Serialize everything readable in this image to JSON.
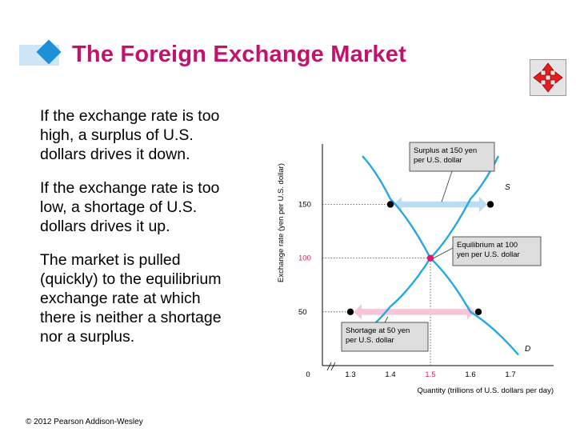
{
  "slide": {
    "title": "The Foreign Exchange Market",
    "bullets": [
      "If the exchange rate is too\nhigh, a surplus of U.S.\ndollars drives it down.",
      "If the exchange rate is too\nlow, a shortage of U.S.\ndollars drives it up.",
      "The market is pulled\n(quickly) to the equilibrium\nexchange rate at which\nthere is neither a shortage\nnor a surplus."
    ],
    "footer": "© 2012 Pearson Addison-Wesley",
    "nav_icon": "move-arrows-icon"
  },
  "chart_data": {
    "type": "line",
    "xlabel": "Quantity (trillions of U.S. dollars per day)",
    "ylabel": "Exchange rate (yen per U.S. dollar)",
    "x_ticks": [
      "0",
      "1.3",
      "1.4",
      "1.5",
      "1.6",
      "1.7"
    ],
    "y_ticks": [
      "50",
      "100",
      "150"
    ],
    "xlim": [
      1.2,
      1.8
    ],
    "ylim": [
      0,
      190
    ],
    "series": [
      {
        "name": "S",
        "points": [
          [
            1.33,
            30
          ],
          [
            1.4,
            55
          ],
          [
            1.5,
            100
          ],
          [
            1.6,
            155
          ],
          [
            1.67,
            195
          ]
        ]
      },
      {
        "name": "D",
        "points": [
          [
            1.33,
            195
          ],
          [
            1.4,
            155
          ],
          [
            1.5,
            100
          ],
          [
            1.6,
            50
          ],
          [
            1.72,
            10
          ]
        ]
      }
    ],
    "markers": [
      {
        "x": 1.4,
        "y": 150,
        "color": "#000000"
      },
      {
        "x": 1.65,
        "y": 150,
        "color": "#000000"
      },
      {
        "x": 1.5,
        "y": 100,
        "color": "#e0196b"
      },
      {
        "x": 1.3,
        "y": 50,
        "color": "#000000"
      },
      {
        "x": 1.62,
        "y": 50,
        "color": "#000000"
      }
    ],
    "equilibrium": {
      "x": 1.5,
      "y": 100,
      "x_label": "1.5",
      "y_label": "100"
    },
    "annotations": [
      {
        "text": "Surplus at 150 yen\nper U.S. dollar",
        "x_from": 1.4,
        "x_to": 1.65,
        "y": 150,
        "color": "#bcdcf2"
      },
      {
        "text": "Equilibrium at 100\nyen per U.S. dollar"
      },
      {
        "text": "Shortage at 50 yen\nper U.S. dollar",
        "x_from": 1.3,
        "x_to": 1.62,
        "y": 50,
        "color": "#f6c6d8"
      }
    ],
    "colors": {
      "curve": "#28a8e0",
      "highlight": "#e0196b",
      "box": "#dddddd"
    }
  }
}
